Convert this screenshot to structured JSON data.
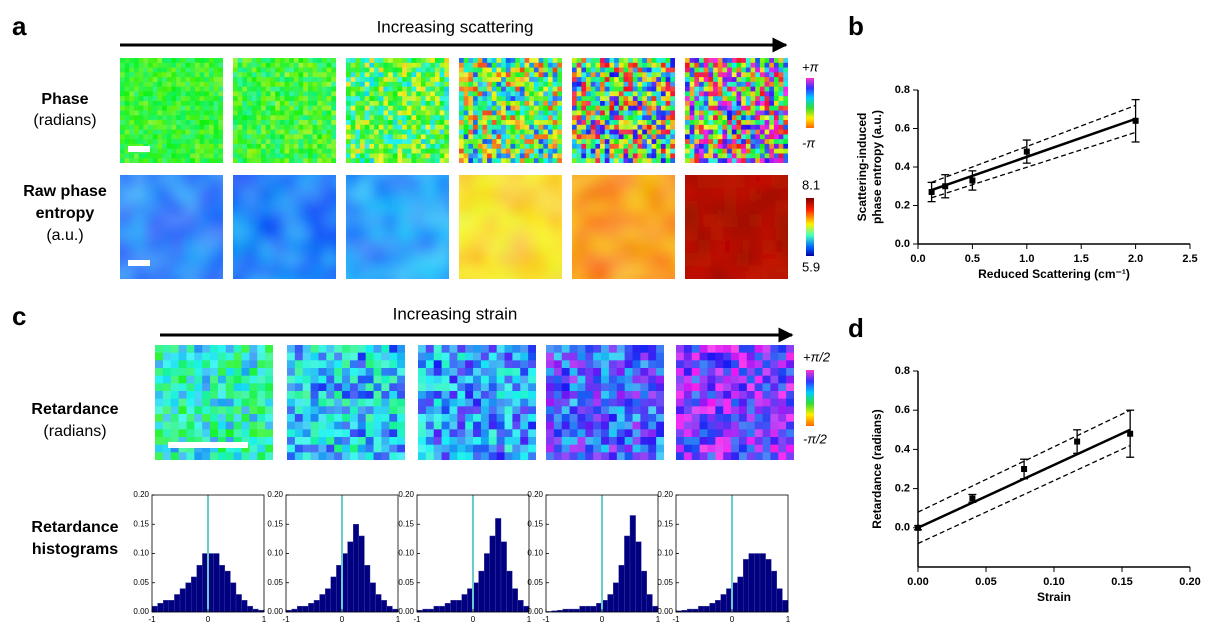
{
  "panels": {
    "a": {
      "letter": "a",
      "arrow_label": "Increasing scattering",
      "rows": [
        {
          "label": [
            "Phase"
          ],
          "unit": "(radians)",
          "cbar_top": "+π",
          "cbar_bottom": "-π"
        },
        {
          "label": [
            "Raw phase",
            "entropy"
          ],
          "unit": "(a.u.)",
          "cbar_top": "8.1",
          "cbar_bottom": "5.9"
        }
      ]
    },
    "b": {
      "letter": "b"
    },
    "c": {
      "letter": "c",
      "arrow_label": "Increasing strain",
      "rows": [
        {
          "label": [
            "Retardance"
          ],
          "unit": "(radians)",
          "cbar_top": "+π/2",
          "cbar_bottom": "-π/2"
        },
        {
          "label": [
            "Retardance",
            "histograms"
          ]
        }
      ]
    },
    "d": {
      "letter": "d"
    }
  },
  "chart_data": [
    {
      "type": "scatter",
      "xlabel": "Reduced Scattering (cm⁻¹)",
      "ylabel": [
        "Scattering-induced",
        "phase entropy (a.u.)"
      ],
      "x": [
        0.125,
        0.25,
        0.5,
        1,
        2
      ],
      "values": [
        0.27,
        0.3,
        0.33,
        0.48,
        0.64
      ],
      "errors": [
        0.05,
        0.06,
        0.05,
        0.06,
        0.11
      ],
      "color": "#000000",
      "fit": {
        "x": [
          0.125,
          2
        ],
        "values": [
          0.28,
          0.65
        ]
      },
      "ci_upper": {
        "x": [
          0.125,
          2
        ],
        "values": [
          0.32,
          0.72
        ]
      },
      "ci_lower": {
        "x": [
          0.125,
          2
        ],
        "values": [
          0.24,
          0.58
        ]
      },
      "xlim": [
        0,
        2.5
      ],
      "xticks": [
        {
          "value": 0,
          "label": "0.0"
        },
        0.5,
        {
          "value": 1,
          "label": "1.0"
        },
        1.5,
        {
          "value": 2,
          "label": "2.0"
        },
        2.5
      ],
      "ylim": [
        0,
        0.8
      ],
      "yticks": [
        {
          "value": 0,
          "label": "0.0"
        },
        0.2,
        0.4,
        0.6,
        0.8
      ]
    },
    {
      "type": "scatter",
      "xlabel": "Strain",
      "ylabel": [
        "Retardance (radians)"
      ],
      "x": [
        0,
        0.04,
        0.078,
        0.117,
        0.156
      ],
      "values": [
        0.0,
        0.15,
        0.3,
        0.44,
        0.48
      ],
      "errors": [
        0.01,
        0.02,
        0.05,
        0.06,
        0.12
      ],
      "color": "#000000",
      "fit": {
        "x": [
          0,
          0.156
        ],
        "values": [
          0.0,
          0.5
        ]
      },
      "ci_upper": {
        "x": [
          0,
          0.156
        ],
        "values": [
          0.08,
          0.6
        ]
      },
      "ci_lower": {
        "x": [
          0,
          0.156
        ],
        "values": [
          -0.08,
          0.42
        ]
      },
      "xlim": [
        0,
        0.2
      ],
      "xticks": [
        {
          "value": 0,
          "label": "0.00"
        },
        0.05,
        {
          "value": 0.1,
          "label": "0.10"
        },
        0.15,
        {
          "value": 0.2,
          "label": "0.20"
        }
      ],
      "ylim": [
        -0.2,
        0.8
      ],
      "yticks": [
        {
          "value": 0,
          "label": "0.0"
        },
        0.2,
        0.4,
        0.6,
        0.8
      ]
    },
    {
      "type": "histogram",
      "bins": [
        -1,
        -0.9,
        -0.8,
        -0.7,
        -0.6,
        -0.5,
        -0.4,
        -0.3,
        -0.2,
        -0.1,
        0,
        0.1,
        0.2,
        0.3,
        0.4,
        0.5,
        0.6,
        0.7,
        0.8,
        0.9,
        1
      ],
      "values": [
        0.01,
        0.015,
        0.02,
        0.02,
        0.03,
        0.04,
        0.05,
        0.06,
        0.08,
        0.1,
        0.1,
        0.1,
        0.08,
        0.07,
        0.05,
        0.03,
        0.02,
        0.01,
        0.005,
        0.003
      ],
      "color": "#000080",
      "vline": 0,
      "vline_color": "#66cccc",
      "xlim": [
        -1,
        1
      ],
      "xticks": [
        -1,
        0,
        1
      ],
      "ylim": [
        0,
        0.2
      ],
      "yticks": [
        {
          "value": 0,
          "label": "0.00"
        },
        0.05,
        {
          "value": 0.1,
          "label": "0.10"
        },
        0.15,
        {
          "value": 0.2,
          "label": "0.20"
        }
      ]
    },
    {
      "type": "histogram",
      "bins": [
        -1,
        -0.9,
        -0.8,
        -0.7,
        -0.6,
        -0.5,
        -0.4,
        -0.3,
        -0.2,
        -0.1,
        0,
        0.1,
        0.2,
        0.3,
        0.4,
        0.5,
        0.6,
        0.7,
        0.8,
        0.9,
        1
      ],
      "values": [
        0.003,
        0.005,
        0.01,
        0.01,
        0.015,
        0.02,
        0.03,
        0.04,
        0.06,
        0.08,
        0.1,
        0.12,
        0.15,
        0.13,
        0.08,
        0.05,
        0.03,
        0.02,
        0.01,
        0.005
      ],
      "color": "#000080",
      "vline": 0,
      "vline_color": "#66cccc",
      "xlim": [
        -1,
        1
      ],
      "xticks": [
        -1,
        0,
        1
      ],
      "ylim": [
        0,
        0.2
      ],
      "yticks": [
        {
          "value": 0,
          "label": "0.00"
        },
        0.05,
        {
          "value": 0.1,
          "label": "0.10"
        },
        0.15,
        {
          "value": 0.2,
          "label": "0.20"
        }
      ]
    },
    {
      "type": "histogram",
      "bins": [
        -1,
        -0.9,
        -0.8,
        -0.7,
        -0.6,
        -0.5,
        -0.4,
        -0.3,
        -0.2,
        -0.1,
        0,
        0.1,
        0.2,
        0.3,
        0.4,
        0.5,
        0.6,
        0.7,
        0.8,
        0.9,
        1
      ],
      "values": [
        0.003,
        0.005,
        0.005,
        0.01,
        0.01,
        0.015,
        0.02,
        0.02,
        0.03,
        0.04,
        0.05,
        0.07,
        0.1,
        0.13,
        0.16,
        0.12,
        0.07,
        0.04,
        0.02,
        0.01
      ],
      "color": "#000080",
      "vline": 0,
      "vline_color": "#66cccc",
      "xlim": [
        -1,
        1
      ],
      "xticks": [
        -1,
        0,
        1
      ],
      "ylim": [
        0,
        0.2
      ],
      "yticks": [
        {
          "value": 0,
          "label": "0.00"
        },
        0.05,
        {
          "value": 0.1,
          "label": "0.10"
        },
        0.15,
        {
          "value": 0.2,
          "label": "0.20"
        }
      ]
    },
    {
      "type": "histogram",
      "bins": [
        -1,
        -0.9,
        -0.8,
        -0.7,
        -0.6,
        -0.5,
        -0.4,
        -0.3,
        -0.2,
        -0.1,
        0,
        0.1,
        0.2,
        0.3,
        0.4,
        0.5,
        0.6,
        0.7,
        0.8,
        0.9,
        1
      ],
      "values": [
        0.001,
        0.002,
        0.003,
        0.005,
        0.005,
        0.005,
        0.01,
        0.01,
        0.01,
        0.015,
        0.02,
        0.03,
        0.05,
        0.08,
        0.13,
        0.165,
        0.12,
        0.07,
        0.03,
        0.01
      ],
      "color": "#000080",
      "vline": 0,
      "vline_color": "#66cccc",
      "xlim": [
        -1,
        1
      ],
      "xticks": [
        -1,
        0,
        1
      ],
      "ylim": [
        0,
        0.2
      ],
      "yticks": [
        {
          "value": 0,
          "label": "0.00"
        },
        0.05,
        {
          "value": 0.1,
          "label": "0.10"
        },
        0.15,
        {
          "value": 0.2,
          "label": "0.20"
        }
      ]
    },
    {
      "type": "histogram",
      "bins": [
        -1,
        -0.9,
        -0.8,
        -0.7,
        -0.6,
        -0.5,
        -0.4,
        -0.3,
        -0.2,
        -0.1,
        0,
        0.1,
        0.2,
        0.3,
        0.4,
        0.5,
        0.6,
        0.7,
        0.8,
        0.9,
        1
      ],
      "values": [
        0.002,
        0.003,
        0.005,
        0.005,
        0.01,
        0.01,
        0.015,
        0.02,
        0.03,
        0.04,
        0.05,
        0.06,
        0.09,
        0.1,
        0.1,
        0.1,
        0.09,
        0.07,
        0.04,
        0.02
      ],
      "color": "#000080",
      "vline": 0,
      "vline_color": "#66cccc",
      "xlim": [
        -1,
        1
      ],
      "xticks": [
        -1,
        0,
        1
      ],
      "ylim": [
        0,
        0.2
      ],
      "yticks": [
        {
          "value": 0,
          "label": "0.00"
        },
        0.05,
        {
          "value": 0.1,
          "label": "0.10"
        },
        0.15,
        {
          "value": 0.2,
          "label": "0.20"
        }
      ]
    }
  ]
}
